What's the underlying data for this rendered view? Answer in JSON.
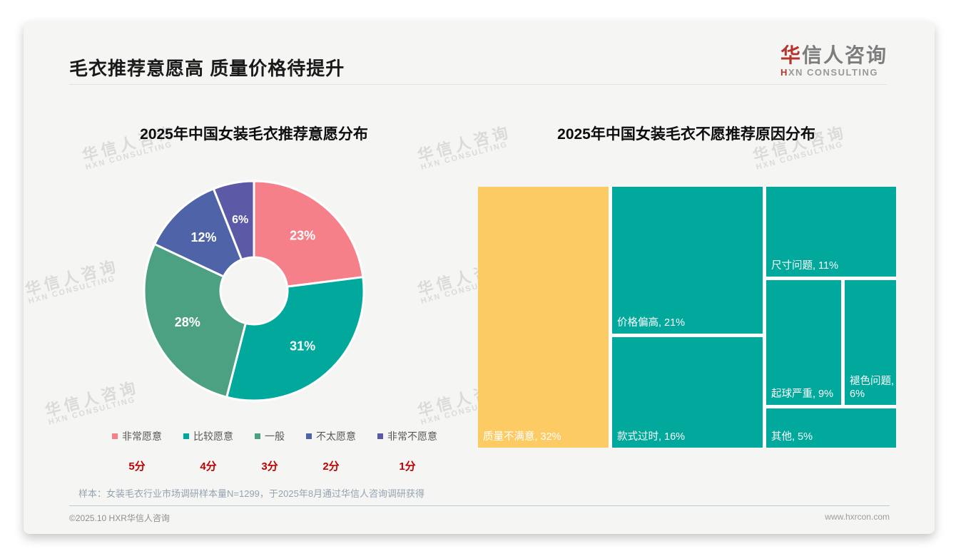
{
  "page": {
    "title": "毛衣推荐意愿高 质量价格待提升",
    "logo": {
      "cn_first": "华",
      "cn_rest": "信人咨询",
      "en_first": "H",
      "en_rest": "XN CONSULTING"
    },
    "watermark": {
      "line1": "华信人咨询",
      "line2": "HXN CONSULTING"
    },
    "note": "样本：女装毛衣行业市场调研样本量N=1299，于2025年8月通过华信人咨询调研获得",
    "footer": {
      "left": "©2025.10 HXR华信人咨询",
      "right": "www.hxrcon.com"
    }
  },
  "colors": {
    "accent_red": "#c00000",
    "logo_red": "#b5352e",
    "treemap_teal": "#00a99c",
    "treemap_yellow": "#fccb63"
  },
  "chart_data": [
    {
      "type": "pie",
      "subtype": "donut",
      "title": "2025年中国女装毛衣推荐意愿分布",
      "labels": [
        "非常愿意",
        "比较愿意",
        "一般",
        "不太愿意",
        "非常不愿意"
      ],
      "values": [
        23,
        31,
        28,
        12,
        6
      ],
      "value_labels": [
        "23%",
        "31%",
        "28%",
        "12%",
        "6%"
      ],
      "scores": [
        "5分",
        "4分",
        "3分",
        "2分",
        "1分"
      ],
      "colors": [
        "#f5808a",
        "#00a99c",
        "#4da183",
        "#4f63a8",
        "#5c59a6"
      ],
      "layout": "starts at 12 o'clock, clockwise; legend below with red score row"
    },
    {
      "type": "treemap",
      "title": "2025年中国女装毛衣不愿推荐原因分布",
      "items": [
        {
          "name": "质量不满意",
          "value": 32,
          "label": "质量不满意, 32%",
          "color": "#fccb63"
        },
        {
          "name": "价格偏高",
          "value": 21,
          "label": "价格偏高, 21%",
          "color": "#00a99c"
        },
        {
          "name": "款式过时",
          "value": 16,
          "label": "款式过时, 16%",
          "color": "#00a99c"
        },
        {
          "name": "尺寸问题",
          "value": 11,
          "label": "尺寸问题, 11%",
          "color": "#00a99c"
        },
        {
          "name": "起球严重",
          "value": 9,
          "label": "起球严重, 9%",
          "color": "#00a99c"
        },
        {
          "name": "褪色问题",
          "value": 6,
          "label": "褪色问题, 6%",
          "color": "#00a99c"
        },
        {
          "name": "其他",
          "value": 5,
          "label": "其他, 5%",
          "color": "#00a99c"
        }
      ]
    }
  ]
}
